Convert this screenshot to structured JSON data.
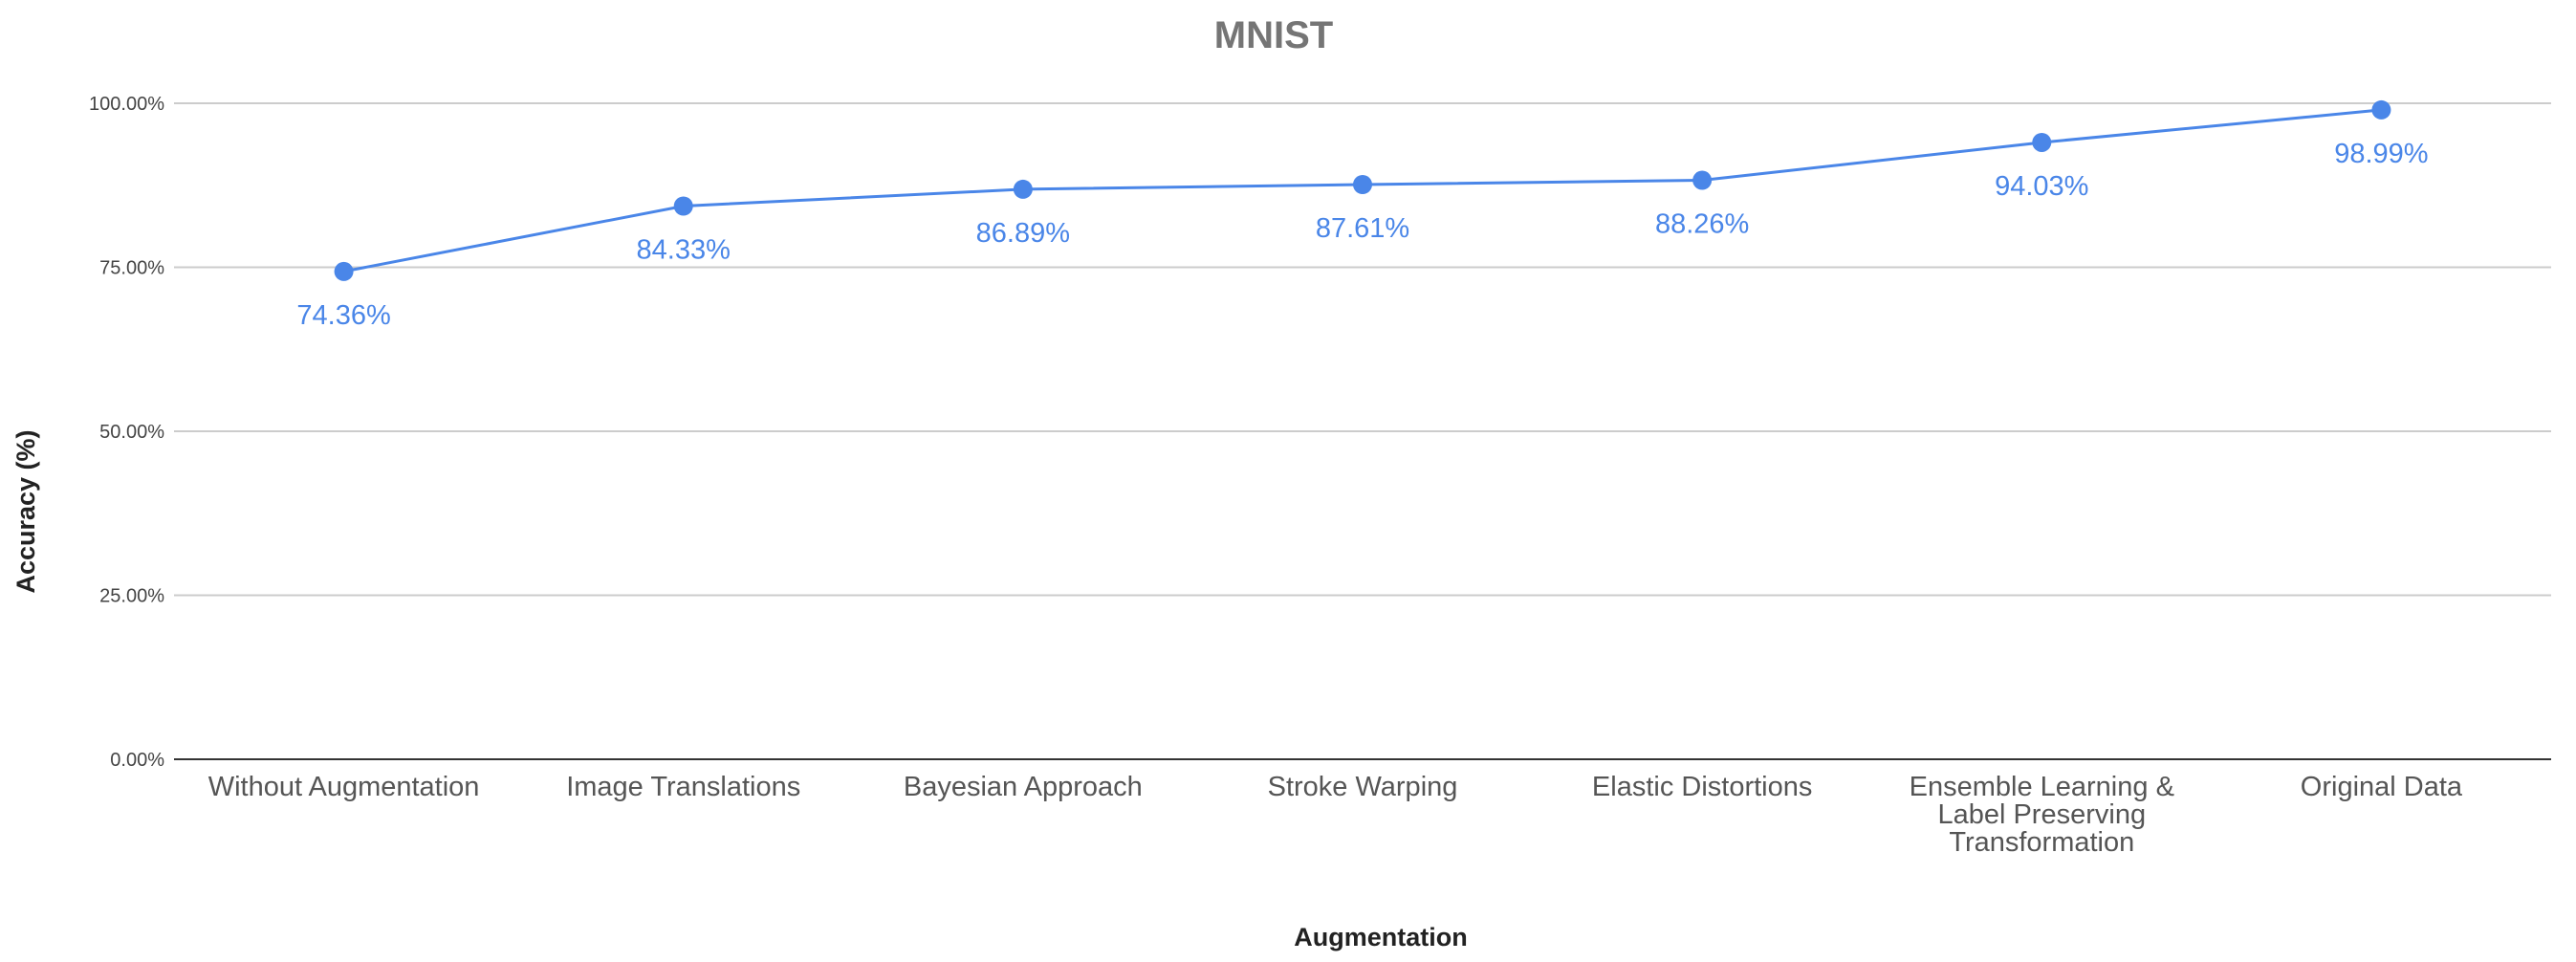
{
  "chart_data": {
    "type": "line",
    "title": "MNIST",
    "xlabel": "Augmentation",
    "ylabel": "Accuracy (%)",
    "categories": [
      [
        "Without Augmentation"
      ],
      [
        "Image Translations"
      ],
      [
        "Bayesian Approach"
      ],
      [
        "Stroke Warping"
      ],
      [
        "Elastic Distortions"
      ],
      [
        "Ensemble Learning &",
        "Label Preserving",
        "Transformation"
      ],
      [
        "Original Data"
      ]
    ],
    "series": [
      {
        "values": [
          74.36,
          84.33,
          86.89,
          87.61,
          88.26,
          94.03,
          98.99
        ],
        "data_labels": [
          "74.36%",
          "84.33%",
          "86.89%",
          "87.61%",
          "88.26%",
          "94.03%",
          "98.99%"
        ],
        "color": "#4a86e8"
      }
    ],
    "ylim": [
      0,
      100
    ],
    "yticks": [
      0,
      25,
      50,
      75,
      100
    ],
    "ytick_labels": [
      "0.00%",
      "25.00%",
      "50.00%",
      "75.00%",
      "100.00%"
    ],
    "grid": true,
    "legend": "none"
  }
}
